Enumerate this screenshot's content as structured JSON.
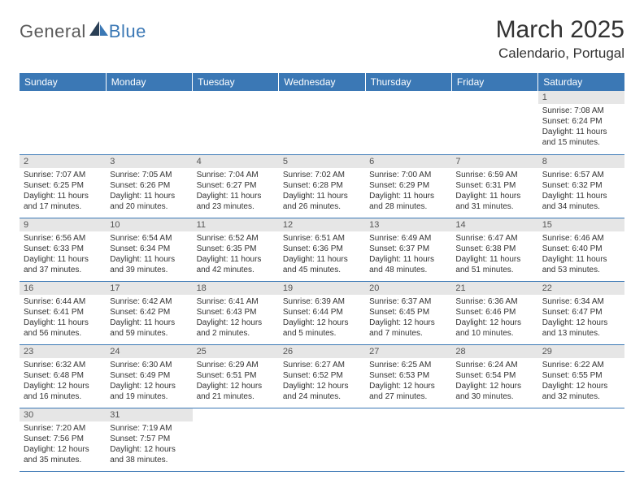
{
  "logo": {
    "part1": "General",
    "part2": "Blue"
  },
  "title": "March 2025",
  "location": "Calendario, Portugal",
  "colors": {
    "header_bg": "#3b78b5",
    "header_fg": "#ffffff",
    "daynum_bg": "#e6e6e6",
    "daynum_fg": "#555555",
    "rule": "#3b78b5",
    "logo_gray": "#5a5a5a",
    "logo_blue": "#3b78b5"
  },
  "typography": {
    "title_fontsize": 30,
    "location_fontsize": 17,
    "header_fontsize": 12,
    "daynum_fontsize": 11,
    "body_fontsize": 10
  },
  "weekdays": [
    "Sunday",
    "Monday",
    "Tuesday",
    "Wednesday",
    "Thursday",
    "Friday",
    "Saturday"
  ],
  "weeks": [
    [
      {
        "empty": true
      },
      {
        "empty": true
      },
      {
        "empty": true
      },
      {
        "empty": true
      },
      {
        "empty": true
      },
      {
        "empty": true
      },
      {
        "num": "1",
        "sunrise": "Sunrise: 7:08 AM",
        "sunset": "Sunset: 6:24 PM",
        "daylight": "Daylight: 11 hours and 15 minutes."
      }
    ],
    [
      {
        "num": "2",
        "sunrise": "Sunrise: 7:07 AM",
        "sunset": "Sunset: 6:25 PM",
        "daylight": "Daylight: 11 hours and 17 minutes."
      },
      {
        "num": "3",
        "sunrise": "Sunrise: 7:05 AM",
        "sunset": "Sunset: 6:26 PM",
        "daylight": "Daylight: 11 hours and 20 minutes."
      },
      {
        "num": "4",
        "sunrise": "Sunrise: 7:04 AM",
        "sunset": "Sunset: 6:27 PM",
        "daylight": "Daylight: 11 hours and 23 minutes."
      },
      {
        "num": "5",
        "sunrise": "Sunrise: 7:02 AM",
        "sunset": "Sunset: 6:28 PM",
        "daylight": "Daylight: 11 hours and 26 minutes."
      },
      {
        "num": "6",
        "sunrise": "Sunrise: 7:00 AM",
        "sunset": "Sunset: 6:29 PM",
        "daylight": "Daylight: 11 hours and 28 minutes."
      },
      {
        "num": "7",
        "sunrise": "Sunrise: 6:59 AM",
        "sunset": "Sunset: 6:31 PM",
        "daylight": "Daylight: 11 hours and 31 minutes."
      },
      {
        "num": "8",
        "sunrise": "Sunrise: 6:57 AM",
        "sunset": "Sunset: 6:32 PM",
        "daylight": "Daylight: 11 hours and 34 minutes."
      }
    ],
    [
      {
        "num": "9",
        "sunrise": "Sunrise: 6:56 AM",
        "sunset": "Sunset: 6:33 PM",
        "daylight": "Daylight: 11 hours and 37 minutes."
      },
      {
        "num": "10",
        "sunrise": "Sunrise: 6:54 AM",
        "sunset": "Sunset: 6:34 PM",
        "daylight": "Daylight: 11 hours and 39 minutes."
      },
      {
        "num": "11",
        "sunrise": "Sunrise: 6:52 AM",
        "sunset": "Sunset: 6:35 PM",
        "daylight": "Daylight: 11 hours and 42 minutes."
      },
      {
        "num": "12",
        "sunrise": "Sunrise: 6:51 AM",
        "sunset": "Sunset: 6:36 PM",
        "daylight": "Daylight: 11 hours and 45 minutes."
      },
      {
        "num": "13",
        "sunrise": "Sunrise: 6:49 AM",
        "sunset": "Sunset: 6:37 PM",
        "daylight": "Daylight: 11 hours and 48 minutes."
      },
      {
        "num": "14",
        "sunrise": "Sunrise: 6:47 AM",
        "sunset": "Sunset: 6:38 PM",
        "daylight": "Daylight: 11 hours and 51 minutes."
      },
      {
        "num": "15",
        "sunrise": "Sunrise: 6:46 AM",
        "sunset": "Sunset: 6:40 PM",
        "daylight": "Daylight: 11 hours and 53 minutes."
      }
    ],
    [
      {
        "num": "16",
        "sunrise": "Sunrise: 6:44 AM",
        "sunset": "Sunset: 6:41 PM",
        "daylight": "Daylight: 11 hours and 56 minutes."
      },
      {
        "num": "17",
        "sunrise": "Sunrise: 6:42 AM",
        "sunset": "Sunset: 6:42 PM",
        "daylight": "Daylight: 11 hours and 59 minutes."
      },
      {
        "num": "18",
        "sunrise": "Sunrise: 6:41 AM",
        "sunset": "Sunset: 6:43 PM",
        "daylight": "Daylight: 12 hours and 2 minutes."
      },
      {
        "num": "19",
        "sunrise": "Sunrise: 6:39 AM",
        "sunset": "Sunset: 6:44 PM",
        "daylight": "Daylight: 12 hours and 5 minutes."
      },
      {
        "num": "20",
        "sunrise": "Sunrise: 6:37 AM",
        "sunset": "Sunset: 6:45 PM",
        "daylight": "Daylight: 12 hours and 7 minutes."
      },
      {
        "num": "21",
        "sunrise": "Sunrise: 6:36 AM",
        "sunset": "Sunset: 6:46 PM",
        "daylight": "Daylight: 12 hours and 10 minutes."
      },
      {
        "num": "22",
        "sunrise": "Sunrise: 6:34 AM",
        "sunset": "Sunset: 6:47 PM",
        "daylight": "Daylight: 12 hours and 13 minutes."
      }
    ],
    [
      {
        "num": "23",
        "sunrise": "Sunrise: 6:32 AM",
        "sunset": "Sunset: 6:48 PM",
        "daylight": "Daylight: 12 hours and 16 minutes."
      },
      {
        "num": "24",
        "sunrise": "Sunrise: 6:30 AM",
        "sunset": "Sunset: 6:49 PM",
        "daylight": "Daylight: 12 hours and 19 minutes."
      },
      {
        "num": "25",
        "sunrise": "Sunrise: 6:29 AM",
        "sunset": "Sunset: 6:51 PM",
        "daylight": "Daylight: 12 hours and 21 minutes."
      },
      {
        "num": "26",
        "sunrise": "Sunrise: 6:27 AM",
        "sunset": "Sunset: 6:52 PM",
        "daylight": "Daylight: 12 hours and 24 minutes."
      },
      {
        "num": "27",
        "sunrise": "Sunrise: 6:25 AM",
        "sunset": "Sunset: 6:53 PM",
        "daylight": "Daylight: 12 hours and 27 minutes."
      },
      {
        "num": "28",
        "sunrise": "Sunrise: 6:24 AM",
        "sunset": "Sunset: 6:54 PM",
        "daylight": "Daylight: 12 hours and 30 minutes."
      },
      {
        "num": "29",
        "sunrise": "Sunrise: 6:22 AM",
        "sunset": "Sunset: 6:55 PM",
        "daylight": "Daylight: 12 hours and 32 minutes."
      }
    ],
    [
      {
        "num": "30",
        "sunrise": "Sunrise: 7:20 AM",
        "sunset": "Sunset: 7:56 PM",
        "daylight": "Daylight: 12 hours and 35 minutes."
      },
      {
        "num": "31",
        "sunrise": "Sunrise: 7:19 AM",
        "sunset": "Sunset: 7:57 PM",
        "daylight": "Daylight: 12 hours and 38 minutes."
      },
      {
        "empty": true
      },
      {
        "empty": true
      },
      {
        "empty": true
      },
      {
        "empty": true
      },
      {
        "empty": true
      }
    ]
  ]
}
